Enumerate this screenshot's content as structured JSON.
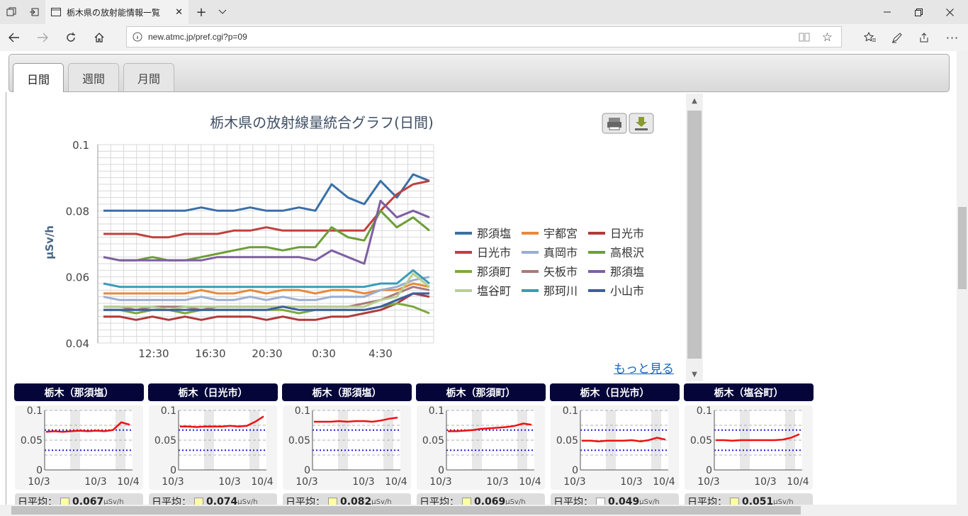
{
  "browser": {
    "tab_title": "栃木県の放射能情報一覧",
    "url": "new.atmc.jp/pref.cgi?p=09"
  },
  "icons": {
    "tab_list": "tab-list-icon",
    "set_aside": "set-aside-icon",
    "page": "page-icon",
    "close": "close-icon",
    "new_tab": "plus-icon",
    "tab_menu": "chevron-down-icon",
    "back": "back-icon",
    "forward": "forward-icon",
    "refresh": "refresh-icon",
    "home": "home-icon",
    "info": "info-icon",
    "reading_view": "reading-view-icon",
    "favorite": "star-icon",
    "favorites_hub": "favorites-hub-icon",
    "pen": "pen-icon",
    "share": "share-icon",
    "more": "more-icon",
    "print": "print-icon",
    "download": "download-icon"
  },
  "period_tabs": [
    "日間",
    "週間",
    "月間"
  ],
  "more_link": "もっと見る",
  "chart_data": {
    "type": "line",
    "title": "栃木県の放射線量統合グラフ(日間)",
    "ylabel": "μSv/h",
    "ylim": [
      0.04,
      0.1
    ],
    "yticks": [
      "0.1",
      "0.08",
      "0.06",
      "0.04"
    ],
    "xticks": [
      "12:30",
      "16:30",
      "20:30",
      "0:30",
      "4:30"
    ],
    "grid": true,
    "legend_position": "right",
    "series": [
      {
        "name": "那須塩",
        "color": "#3a6fa8",
        "values": [
          0.08,
          0.08,
          0.08,
          0.08,
          0.08,
          0.08,
          0.081,
          0.08,
          0.08,
          0.081,
          0.08,
          0.08,
          0.081,
          0.08,
          0.088,
          0.084,
          0.082,
          0.089,
          0.084,
          0.091,
          0.089
        ]
      },
      {
        "name": "宇都宮",
        "color": "#e8893a",
        "values": [
          0.055,
          0.055,
          0.055,
          0.055,
          0.055,
          0.055,
          0.056,
          0.055,
          0.055,
          0.056,
          0.055,
          0.056,
          0.056,
          0.055,
          0.056,
          0.056,
          0.055,
          0.056,
          0.056,
          0.058,
          0.057
        ]
      },
      {
        "name": "日光市",
        "color": "#b03a3a",
        "values": [
          0.048,
          0.048,
          0.047,
          0.048,
          0.047,
          0.048,
          0.047,
          0.048,
          0.048,
          0.048,
          0.047,
          0.048,
          0.047,
          0.047,
          0.048,
          0.048,
          0.049,
          0.05,
          0.052,
          0.055,
          0.054
        ]
      },
      {
        "name": "日光市",
        "color": "#c0403d",
        "values": [
          0.073,
          0.073,
          0.073,
          0.072,
          0.072,
          0.073,
          0.073,
          0.073,
          0.074,
          0.074,
          0.075,
          0.074,
          0.074,
          0.074,
          0.074,
          0.074,
          0.074,
          0.08,
          0.085,
          0.088,
          0.089
        ]
      },
      {
        "name": "真岡市",
        "color": "#9aaed0",
        "values": [
          0.054,
          0.053,
          0.053,
          0.053,
          0.053,
          0.053,
          0.054,
          0.053,
          0.053,
          0.054,
          0.053,
          0.054,
          0.053,
          0.053,
          0.054,
          0.054,
          0.054,
          0.056,
          0.057,
          0.059,
          0.06
        ]
      },
      {
        "name": "高根沢",
        "color": "#6d9e37",
        "values": [
          0.066,
          0.065,
          0.065,
          0.066,
          0.065,
          0.065,
          0.066,
          0.067,
          0.068,
          0.069,
          0.069,
          0.068,
          0.069,
          0.069,
          0.075,
          0.072,
          0.071,
          0.08,
          0.075,
          0.078,
          0.074
        ]
      },
      {
        "name": "那須町",
        "color": "#7ea83e",
        "values": [
          0.05,
          0.05,
          0.049,
          0.05,
          0.05,
          0.049,
          0.05,
          0.05,
          0.05,
          0.05,
          0.05,
          0.05,
          0.049,
          0.05,
          0.05,
          0.05,
          0.05,
          0.051,
          0.052,
          0.051,
          0.049
        ]
      },
      {
        "name": "矢板市",
        "color": "#a87a7a",
        "values": [
          0.051,
          0.051,
          0.05,
          0.051,
          0.051,
          0.051,
          0.05,
          0.051,
          0.051,
          0.051,
          0.051,
          0.051,
          0.051,
          0.051,
          0.051,
          0.051,
          0.052,
          0.053,
          0.055,
          0.057,
          0.056
        ]
      },
      {
        "name": "那須塩",
        "color": "#7e5fa3",
        "values": [
          0.066,
          0.065,
          0.065,
          0.065,
          0.065,
          0.065,
          0.065,
          0.066,
          0.066,
          0.066,
          0.066,
          0.066,
          0.066,
          0.065,
          0.068,
          0.066,
          0.064,
          0.083,
          0.078,
          0.08,
          0.078
        ]
      },
      {
        "name": "塩谷町",
        "color": "#b7d08e",
        "values": [
          0.051,
          0.051,
          0.051,
          0.051,
          0.05,
          0.051,
          0.051,
          0.051,
          0.051,
          0.051,
          0.051,
          0.051,
          0.051,
          0.051,
          0.051,
          0.051,
          0.051,
          0.053,
          0.054,
          0.061,
          0.057
        ]
      },
      {
        "name": "那珂川",
        "color": "#3a9bb8",
        "values": [
          0.058,
          0.057,
          0.057,
          0.057,
          0.057,
          0.057,
          0.057,
          0.057,
          0.057,
          0.057,
          0.057,
          0.057,
          0.057,
          0.057,
          0.057,
          0.057,
          0.057,
          0.058,
          0.058,
          0.062,
          0.058
        ]
      },
      {
        "name": "小山市",
        "color": "#3a5fa0",
        "values": [
          0.05,
          0.05,
          0.05,
          0.05,
          0.05,
          0.05,
          0.05,
          0.05,
          0.05,
          0.05,
          0.05,
          0.051,
          0.05,
          0.05,
          0.05,
          0.05,
          0.05,
          0.051,
          0.053,
          0.055,
          0.055
        ]
      }
    ]
  },
  "mini_charts": [
    {
      "title": "栃木（那須塩）",
      "avg": "0.067",
      "swatch": "#ffffa0",
      "values": [
        0.064,
        0.065,
        0.064,
        0.065,
        0.066,
        0.065,
        0.066,
        0.065,
        0.067,
        0.08,
        0.076
      ]
    },
    {
      "title": "栃木（日光市）",
      "avg": "0.074",
      "swatch": "#ffffa0",
      "values": [
        0.073,
        0.073,
        0.072,
        0.073,
        0.073,
        0.073,
        0.074,
        0.073,
        0.074,
        0.081,
        0.09
      ]
    },
    {
      "title": "栃木（那須塩）",
      "avg": "0.082",
      "swatch": "#ffffa0",
      "values": [
        0.081,
        0.081,
        0.081,
        0.082,
        0.081,
        0.082,
        0.082,
        0.081,
        0.083,
        0.086,
        0.088
      ]
    },
    {
      "title": "栃木（那須町）",
      "avg": "0.069",
      "swatch": "#ffffa0",
      "values": [
        0.065,
        0.065,
        0.066,
        0.067,
        0.069,
        0.07,
        0.071,
        0.072,
        0.074,
        0.078,
        0.076
      ]
    },
    {
      "title": "栃木（日光市）",
      "avg": "0.049",
      "swatch": "#ffffff",
      "values": [
        0.049,
        0.049,
        0.048,
        0.049,
        0.049,
        0.049,
        0.05,
        0.048,
        0.05,
        0.054,
        0.051
      ]
    },
    {
      "title": "栃木（塩谷町）",
      "avg": "0.051",
      "swatch": "#ffffa0",
      "values": [
        0.05,
        0.05,
        0.049,
        0.05,
        0.05,
        0.05,
        0.05,
        0.05,
        0.051,
        0.054,
        0.06
      ]
    }
  ],
  "mini_axis": {
    "yticks": [
      "0.1",
      "0.05",
      "0"
    ],
    "xticks": [
      "10/3",
      "10/3",
      "10/4"
    ],
    "ymax": 0.1,
    "upper_ref": 0.067,
    "lower_ref": 0.033
  },
  "avg_label": "日平均：",
  "avg_unit": "μSv/h"
}
